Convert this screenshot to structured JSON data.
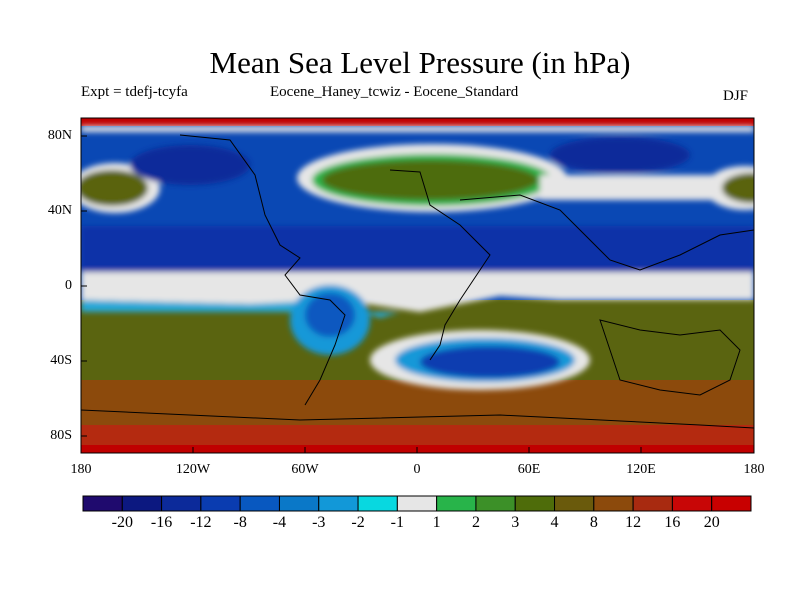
{
  "title": "Mean Sea Level Pressure (in hPa)",
  "subtitle_left": "Expt = tdefj-tcyfa",
  "subtitle_center": "Eocene_Haney_tcwiz - Eocene_Standard",
  "subtitle_right": "DJF",
  "map": {
    "lat_ticks": [
      "80N",
      "40N",
      "0",
      "40S",
      "80S"
    ],
    "lon_ticks": [
      "180",
      "120W",
      "60W",
      "0",
      "60E",
      "120E",
      "180"
    ],
    "ocean_base_color": "#1e78c8"
  },
  "colorbar": {
    "labels": [
      "-20",
      "-16",
      "-12",
      "-8",
      "-4",
      "-3",
      "-2",
      "-1",
      "1",
      "2",
      "3",
      "4",
      "8",
      "12",
      "16",
      "20"
    ],
    "colors": [
      "#1f0a6e",
      "#0c1880",
      "#0c2a9a",
      "#0a3cb0",
      "#0858c0",
      "#0a78c8",
      "#1298d8",
      "#08d8e0",
      "#e6e6e6",
      "#28b44a",
      "#3c9028",
      "#4e6c0a",
      "#6a5a0c",
      "#8c4a0c",
      "#a82a10",
      "#c80606",
      "#c80000"
    ]
  }
}
